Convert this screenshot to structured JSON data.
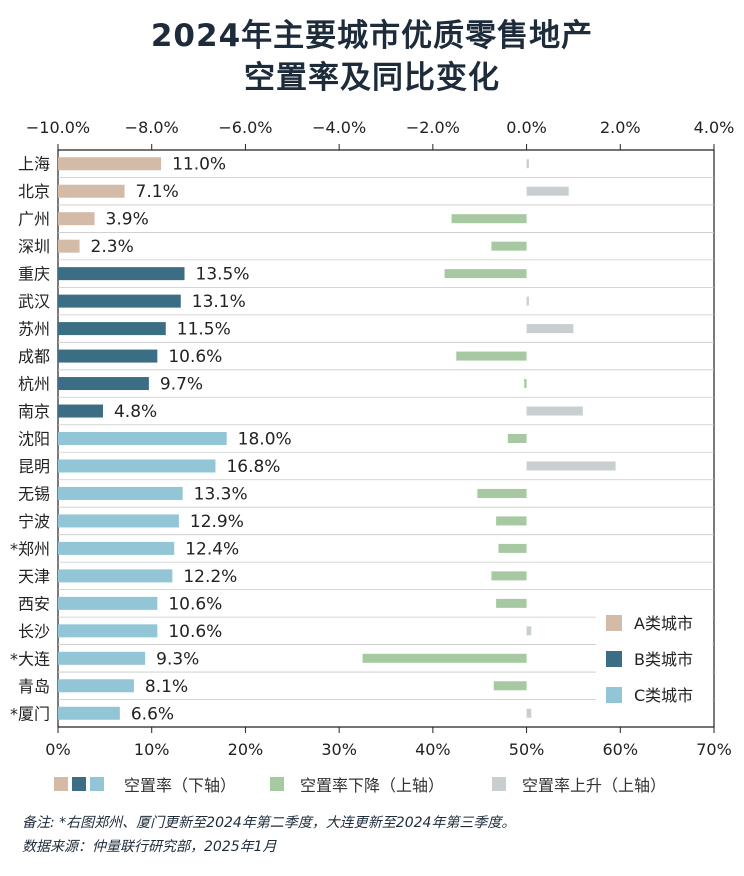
{
  "title_line1": "2024年主要城市优质零售地产",
  "title_line2": "空置率及同比变化",
  "colors": {
    "A": "#d4bba8",
    "B": "#3b6e85",
    "C": "#92c6d6",
    "decline": "#a6c9a1",
    "rise": "#c9cfd1"
  },
  "chart_data": {
    "type": "bar",
    "categories": [
      "上海",
      "北京",
      "广州",
      "深圳",
      "重庆",
      "武汉",
      "苏州",
      "成都",
      "杭州",
      "南京",
      "沈阳",
      "昆明",
      "无锡",
      "宁波",
      "*郑州",
      "天津",
      "西安",
      "长沙",
      "*大连",
      "青岛",
      "*厦门"
    ],
    "groups": [
      "A",
      "A",
      "A",
      "A",
      "B",
      "B",
      "B",
      "B",
      "B",
      "B",
      "C",
      "C",
      "C",
      "C",
      "C",
      "C",
      "C",
      "C",
      "C",
      "C",
      "C"
    ],
    "vacancy_rate": [
      11.0,
      7.1,
      3.9,
      2.3,
      13.5,
      13.1,
      11.5,
      10.6,
      9.7,
      4.8,
      18.0,
      16.8,
      13.3,
      12.9,
      12.4,
      12.2,
      10.6,
      10.6,
      9.3,
      8.1,
      6.6
    ],
    "vacancy_labels": [
      "11.0%",
      "7.1%",
      "3.9%",
      "2.3%",
      "13.5%",
      "13.1%",
      "11.5%",
      "10.6%",
      "9.7%",
      "4.8%",
      "18.0%",
      "16.8%",
      "13.3%",
      "12.9%",
      "12.4%",
      "12.2%",
      "10.6%",
      "10.6%",
      "9.3%",
      "8.1%",
      "6.6%"
    ],
    "yoy_change": [
      0.05,
      0.9,
      -1.6,
      -0.75,
      -1.75,
      0.05,
      1.0,
      -1.5,
      -0.05,
      1.2,
      -0.4,
      1.9,
      -1.05,
      -0.65,
      -0.6,
      -0.75,
      -0.65,
      0.1,
      -3.5,
      -0.7,
      0.1
    ],
    "bottom_axis": {
      "min": 0,
      "max": 70,
      "ticks": [
        "0%",
        "10%",
        "20%",
        "30%",
        "40%",
        "50%",
        "60%",
        "70%"
      ]
    },
    "top_axis": {
      "min": -10,
      "max": 4,
      "ticks": [
        "−10.0%",
        "−8.0%",
        "−6.0%",
        "−4.0%",
        "−2.0%",
        "0.0%",
        "2.0%",
        "4.0%"
      ]
    }
  },
  "group_legend": [
    {
      "label": "A类城市",
      "color": "#d4bba8"
    },
    {
      "label": "B类城市",
      "color": "#3b6e85"
    },
    {
      "label": "C类城市",
      "color": "#92c6d6"
    }
  ],
  "legend": {
    "vacancy": "空置率（下轴）",
    "decline": "空置率下降（上轴）",
    "rise": "空置率上升（上轴）"
  },
  "notes": {
    "line1": "备注:   *右图郑州、厦门更新至2024年第二季度，大连更新至2024年第三季度。",
    "line2": "数据来源：仲量联行研究部，2025年1月"
  }
}
